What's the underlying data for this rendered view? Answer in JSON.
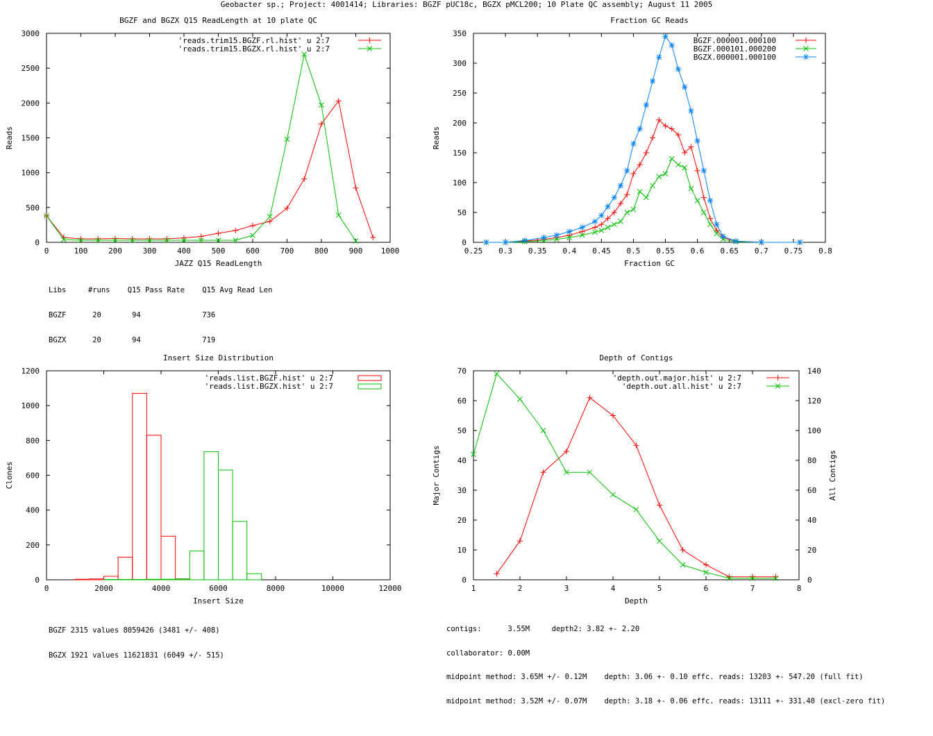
{
  "page_title": "Geobacter sp.; Project: 4001414; Libraries: BGZF pUC18c, BGZX pMCL200; 10 Plate QC assembly; August 11 2005",
  "colors": {
    "red": "#ff0000",
    "green": "#00c000",
    "blue": "#0080ff"
  },
  "stats": {
    "readlength": [
      "Libs     #runs    Q15 Pass Rate    Q15 Avg Read Len",
      "BGZF      20       94              736",
      "BGZX      20       94              719"
    ],
    "insert": [
      "BGZF 2315 values 8059426 (3481 +/- 408)",
      "BGZX 1921 values 11621831 (6049 +/- 515)"
    ],
    "depth": [
      "contigs:      3.55M     depth2: 3.82 +- 2.20",
      "collaborator: 0.00M",
      "midpoint method: 3.65M +/- 0.12M    depth: 3.06 +- 0.10 effc. reads: 13203 +- 547.20 (full fit)",
      "midpoint method: 3.52M +/- 0.07M    depth: 3.18 +- 0.06 effc. reads: 13111 +- 331.40 (excl-zero fit)"
    ]
  },
  "chart_data": [
    {
      "id": "readlength",
      "type": "line",
      "title": "BGZF and BGZX Q15 ReadLength at 10 plate QC",
      "xlabel": "JAZZ Q15 ReadLength",
      "ylabel": "Reads",
      "xlim": [
        0,
        1000
      ],
      "ylim": [
        0,
        3000
      ],
      "xticks": [
        0,
        100,
        200,
        300,
        400,
        500,
        600,
        700,
        800,
        900,
        1000
      ],
      "yticks": [
        0,
        500,
        1000,
        1500,
        2000,
        2500,
        3000
      ],
      "series": [
        {
          "name": "'reads.trim15.BGZF.rl.hist' u 2:7",
          "color": "#ff0000",
          "marker": "plus",
          "x": [
            0,
            50,
            100,
            150,
            200,
            250,
            300,
            350,
            400,
            450,
            500,
            550,
            600,
            650,
            700,
            750,
            800,
            850,
            900,
            950
          ],
          "y": [
            380,
            70,
            50,
            50,
            55,
            50,
            50,
            50,
            65,
            85,
            130,
            170,
            240,
            300,
            490,
            910,
            1700,
            2030,
            780,
            70
          ]
        },
        {
          "name": "'reads.trim15.BGZX.rl.hist' u 2:7",
          "color": "#00c000",
          "marker": "cross",
          "x": [
            0,
            50,
            100,
            150,
            200,
            250,
            300,
            350,
            400,
            450,
            500,
            550,
            600,
            650,
            700,
            750,
            800,
            850,
            900
          ],
          "y": [
            380,
            40,
            30,
            30,
            30,
            30,
            30,
            30,
            30,
            30,
            30,
            30,
            100,
            370,
            1480,
            2700,
            1970,
            390,
            20
          ]
        }
      ]
    },
    {
      "id": "gc",
      "type": "line",
      "title": "Fraction GC Reads",
      "xlabel": "Fraction GC",
      "ylabel": "Reads",
      "xlim": [
        0.25,
        0.8
      ],
      "ylim": [
        0,
        350
      ],
      "xticks": [
        0.25,
        0.3,
        0.35,
        0.4,
        0.45,
        0.5,
        0.55,
        0.6,
        0.65,
        0.7,
        0.75,
        0.8
      ],
      "yticks": [
        0,
        50,
        100,
        150,
        200,
        250,
        300,
        350
      ],
      "series": [
        {
          "name": "BGZF.000001.000100",
          "color": "#ff0000",
          "marker": "plus",
          "x": [
            0.27,
            0.3,
            0.33,
            0.36,
            0.38,
            0.4,
            0.42,
            0.44,
            0.45,
            0.46,
            0.47,
            0.48,
            0.49,
            0.5,
            0.51,
            0.52,
            0.53,
            0.54,
            0.55,
            0.56,
            0.57,
            0.58,
            0.59,
            0.6,
            0.61,
            0.62,
            0.63,
            0.64,
            0.66,
            0.7,
            0.76
          ],
          "y": [
            0,
            0,
            2,
            5,
            8,
            12,
            18,
            25,
            30,
            40,
            50,
            65,
            80,
            115,
            130,
            150,
            175,
            205,
            195,
            190,
            180,
            150,
            160,
            120,
            75,
            40,
            20,
            8,
            2,
            0,
            0
          ]
        },
        {
          "name": "BGZF.000101.000200",
          "color": "#00c000",
          "marker": "cross",
          "x": [
            0.27,
            0.3,
            0.33,
            0.36,
            0.38,
            0.4,
            0.42,
            0.44,
            0.45,
            0.46,
            0.47,
            0.48,
            0.49,
            0.5,
            0.51,
            0.52,
            0.53,
            0.54,
            0.55,
            0.56,
            0.57,
            0.58,
            0.59,
            0.6,
            0.61,
            0.62,
            0.63,
            0.64,
            0.66,
            0.7,
            0.76
          ],
          "y": [
            0,
            0,
            1,
            3,
            5,
            8,
            12,
            17,
            20,
            25,
            30,
            35,
            50,
            55,
            85,
            75,
            95,
            110,
            115,
            140,
            130,
            125,
            90,
            70,
            50,
            30,
            15,
            5,
            1,
            0,
            0
          ]
        },
        {
          "name": "BGZX.000001.000100",
          "color": "#0080ff",
          "marker": "star",
          "x": [
            0.27,
            0.3,
            0.33,
            0.36,
            0.38,
            0.4,
            0.42,
            0.44,
            0.45,
            0.46,
            0.47,
            0.48,
            0.49,
            0.5,
            0.51,
            0.52,
            0.53,
            0.54,
            0.55,
            0.56,
            0.57,
            0.58,
            0.59,
            0.6,
            0.61,
            0.62,
            0.63,
            0.64,
            0.66,
            0.7,
            0.76
          ],
          "y": [
            0,
            0,
            3,
            8,
            12,
            18,
            25,
            35,
            45,
            60,
            75,
            95,
            120,
            165,
            190,
            230,
            270,
            310,
            345,
            330,
            290,
            260,
            220,
            170,
            120,
            70,
            30,
            10,
            2,
            0,
            0
          ]
        }
      ]
    },
    {
      "id": "insert",
      "type": "bar",
      "title": "Insert Size Distribution",
      "xlabel": "Insert Size",
      "ylabel": "Clones",
      "xlim": [
        0,
        12000
      ],
      "ylim": [
        0,
        1200
      ],
      "xticks": [
        0,
        2000,
        4000,
        6000,
        8000,
        10000,
        12000
      ],
      "yticks": [
        0,
        200,
        400,
        600,
        800,
        1000,
        1200
      ],
      "bin_width": 500,
      "series": [
        {
          "name": "'reads.list.BGZF.hist' u 2:7",
          "color": "#ff0000",
          "x": [
            1000,
            1500,
            2000,
            2500,
            3000,
            3500,
            4000,
            4500
          ],
          "values": [
            3,
            5,
            20,
            130,
            1070,
            830,
            250,
            5
          ]
        },
        {
          "name": "'reads.list.BGZX.hist' u 2:7",
          "color": "#00c000",
          "x": [
            2000,
            2500,
            3000,
            3500,
            4000,
            4500,
            5000,
            5500,
            6000,
            6500,
            7000
          ],
          "values": [
            2,
            2,
            2,
            3,
            3,
            5,
            165,
            735,
            630,
            335,
            35
          ]
        }
      ]
    },
    {
      "id": "depth",
      "type": "line",
      "title": "Depth of Contigs",
      "xlabel": "Depth",
      "ylabel": "Major Contigs",
      "y2label": "All Contigs",
      "xlim": [
        1,
        8
      ],
      "ylim": [
        0,
        70
      ],
      "y2lim": [
        0,
        140
      ],
      "xticks": [
        1,
        2,
        3,
        4,
        5,
        6,
        7,
        8
      ],
      "yticks": [
        0,
        10,
        20,
        30,
        40,
        50,
        60,
        70
      ],
      "y2ticks": [
        0,
        20,
        40,
        60,
        80,
        100,
        120,
        140
      ],
      "series": [
        {
          "name": "'depth.out.major.hist' u 2:7",
          "color": "#ff0000",
          "marker": "plus",
          "axis": "y",
          "x": [
            1.5,
            2,
            2.5,
            3,
            3.5,
            4,
            4.5,
            5,
            5.5,
            6,
            6.5,
            7,
            7.5
          ],
          "y": [
            2,
            13,
            36,
            43,
            61,
            55,
            45,
            25,
            10,
            5,
            1,
            1,
            1
          ]
        },
        {
          "name": "'depth.out.all.hist' u 2:7",
          "color": "#00c000",
          "marker": "cross",
          "axis": "y2",
          "x": [
            1,
            1.5,
            2,
            2.5,
            3,
            3.5,
            4,
            4.5,
            5,
            5.5,
            6,
            6.5,
            7,
            7.5
          ],
          "y": [
            84,
            138,
            121,
            100,
            72,
            72,
            57,
            47,
            26,
            10,
            5,
            1,
            1,
            1
          ]
        }
      ]
    }
  ]
}
